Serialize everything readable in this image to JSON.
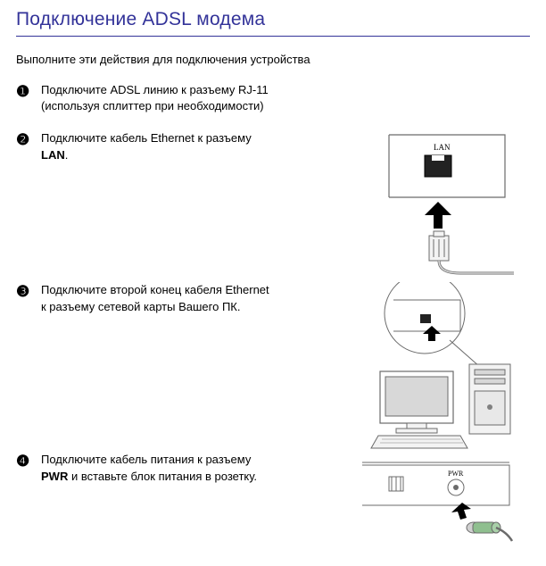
{
  "title": "Подключение ADSL модема",
  "intro": "Выполните эти действия для подключения устройства",
  "steps": [
    {
      "num": "❶",
      "html": "Подключите ADSL линию к разъему RJ-11 (используя сплиттер при необходимости)"
    },
    {
      "num": "❷",
      "html": "Подключите кабель Ethernet к разъему <b>LAN</b>."
    },
    {
      "num": "❸",
      "html": "Подключите второй конец кабеля Ethernet к разъему сетевой карты Вашего ПК."
    },
    {
      "num": "❹",
      "html": "Подключите кабель питания к разъему <b>PWR</b> и вставьте блок питания в розетку."
    }
  ],
  "labels": {
    "lan": "LAN",
    "pwr": "PWR"
  },
  "colors": {
    "title": "#333399",
    "rule": "#333399",
    "text": "#000000",
    "line": "#6b6b6b",
    "fill_light": "#f3f3f3",
    "fill_mid": "#d8d8d8",
    "fill_dark": "#808080",
    "plug_green": "#8fbf8f"
  }
}
